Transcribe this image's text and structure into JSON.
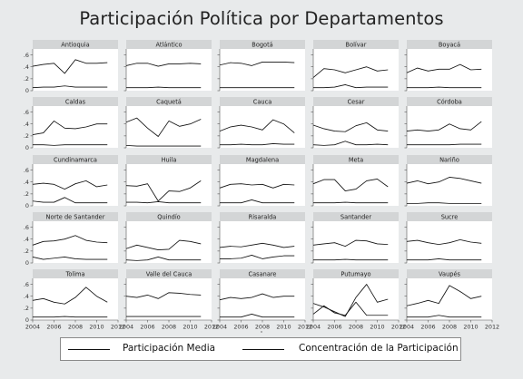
{
  "title": "Participación Política por Departamentos",
  "colors": {
    "background": "#e8eaeb",
    "panel": "#ffffff",
    "strip": "#d3d5d6",
    "line": "#111111"
  },
  "chart_data": {
    "type": "line",
    "facets": true,
    "x": [
      2004,
      2005,
      2006,
      2007,
      2008,
      2009,
      2010,
      2011
    ],
    "xticks": [
      "2004",
      "2006",
      "2008",
      "2010",
      "2012"
    ],
    "xlim": [
      2004,
      2012
    ],
    "ylim": [
      0,
      0.7
    ],
    "yticks": [
      "0",
      ".2",
      ".4",
      ".6"
    ],
    "grid": false,
    "legend_position": "bottom",
    "legend": [
      "Participación Media",
      "Concentración de la Participación"
    ],
    "panels": [
      {
        "name": "Antioquia",
        "series": [
          {
            "values": [
              0.41,
              0.44,
              0.46,
              0.29,
              0.52,
              0.46,
              0.46,
              0.47
            ]
          },
          {
            "values": [
              0.05,
              0.06,
              0.06,
              0.08,
              0.06,
              0.06,
              0.06,
              0.06
            ]
          }
        ]
      },
      {
        "name": "Atlántico",
        "series": [
          {
            "values": [
              0.42,
              0.46,
              0.46,
              0.41,
              0.45,
              0.45,
              0.46,
              0.45
            ]
          },
          {
            "values": [
              0.05,
              0.05,
              0.05,
              0.06,
              0.05,
              0.05,
              0.05,
              0.05
            ]
          }
        ]
      },
      {
        "name": "Bogotá",
        "series": [
          {
            "values": [
              0.43,
              0.47,
              0.46,
              0.42,
              0.48,
              0.48,
              0.48,
              0.47
            ]
          },
          {
            "values": [
              0.05,
              0.05,
              0.05,
              0.05,
              0.05,
              0.05,
              0.05,
              0.05
            ]
          }
        ]
      },
      {
        "name": "Bolívar",
        "series": [
          {
            "values": [
              0.22,
              0.37,
              0.35,
              0.3,
              0.35,
              0.4,
              0.33,
              0.35
            ]
          },
          {
            "values": [
              0.05,
              0.05,
              0.06,
              0.1,
              0.05,
              0.06,
              0.06,
              0.06
            ]
          }
        ]
      },
      {
        "name": "Boyacá",
        "series": [
          {
            "values": [
              0.3,
              0.38,
              0.33,
              0.36,
              0.36,
              0.44,
              0.35,
              0.36
            ]
          },
          {
            "values": [
              0.05,
              0.05,
              0.05,
              0.06,
              0.05,
              0.05,
              0.05,
              0.05
            ]
          }
        ]
      },
      {
        "name": "Caldas",
        "series": [
          {
            "values": [
              0.22,
              0.25,
              0.45,
              0.33,
              0.32,
              0.35,
              0.4,
              0.4
            ]
          },
          {
            "values": [
              0.05,
              0.05,
              0.04,
              0.05,
              0.05,
              0.05,
              0.05,
              0.05
            ]
          }
        ]
      },
      {
        "name": "Caquetá",
        "series": [
          {
            "values": [
              0.43,
              0.5,
              0.33,
              0.19,
              0.45,
              0.36,
              0.4,
              0.48
            ]
          },
          {
            "values": [
              0.04,
              0.03,
              0.03,
              0.03,
              0.03,
              0.03,
              0.03,
              0.03
            ]
          }
        ]
      },
      {
        "name": "Cauca",
        "series": [
          {
            "values": [
              0.28,
              0.35,
              0.38,
              0.35,
              0.3,
              0.47,
              0.4,
              0.25
            ]
          },
          {
            "values": [
              0.05,
              0.05,
              0.06,
              0.05,
              0.05,
              0.07,
              0.06,
              0.06
            ]
          }
        ]
      },
      {
        "name": "Cesar",
        "series": [
          {
            "values": [
              0.38,
              0.32,
              0.28,
              0.27,
              0.37,
              0.42,
              0.3,
              0.28
            ]
          },
          {
            "values": [
              0.05,
              0.04,
              0.05,
              0.11,
              0.05,
              0.05,
              0.06,
              0.05
            ]
          }
        ]
      },
      {
        "name": "Córdoba",
        "series": [
          {
            "values": [
              0.28,
              0.3,
              0.28,
              0.3,
              0.4,
              0.32,
              0.3,
              0.44
            ]
          },
          {
            "values": [
              0.05,
              0.05,
              0.05,
              0.05,
              0.05,
              0.06,
              0.06,
              0.06
            ]
          }
        ]
      },
      {
        "name": "Cundinamarca",
        "series": [
          {
            "values": [
              0.36,
              0.38,
              0.36,
              0.28,
              0.37,
              0.42,
              0.32,
              0.35
            ]
          },
          {
            "values": [
              0.08,
              0.06,
              0.06,
              0.14,
              0.05,
              0.05,
              0.05,
              0.05
            ]
          }
        ]
      },
      {
        "name": "Huila",
        "series": [
          {
            "values": [
              0.34,
              0.33,
              0.37,
              0.08,
              0.25,
              0.24,
              0.3,
              0.42
            ]
          },
          {
            "values": [
              0.06,
              0.06,
              0.05,
              0.07,
              0.05,
              0.05,
              0.05,
              0.05
            ]
          }
        ]
      },
      {
        "name": "Magdalena",
        "series": [
          {
            "values": [
              0.3,
              0.36,
              0.37,
              0.35,
              0.36,
              0.3,
              0.36,
              0.35
            ]
          },
          {
            "values": [
              0.05,
              0.05,
              0.05,
              0.1,
              0.05,
              0.05,
              0.05,
              0.05
            ]
          }
        ]
      },
      {
        "name": "Meta",
        "series": [
          {
            "values": [
              0.37,
              0.44,
              0.44,
              0.25,
              0.28,
              0.42,
              0.45,
              0.32
            ]
          },
          {
            "values": [
              0.05,
              0.05,
              0.05,
              0.06,
              0.05,
              0.05,
              0.05,
              0.05
            ]
          }
        ]
      },
      {
        "name": "Nariño",
        "series": [
          {
            "values": [
              0.38,
              0.42,
              0.37,
              0.4,
              0.48,
              0.46,
              0.42,
              0.38
            ]
          },
          {
            "values": [
              0.04,
              0.04,
              0.05,
              0.05,
              0.04,
              0.04,
              0.04,
              0.04
            ]
          }
        ]
      },
      {
        "name": "Norte de Santander",
        "series": [
          {
            "values": [
              0.3,
              0.36,
              0.37,
              0.4,
              0.46,
              0.38,
              0.35,
              0.34
            ]
          },
          {
            "values": [
              0.1,
              0.06,
              0.08,
              0.1,
              0.07,
              0.06,
              0.06,
              0.06
            ]
          }
        ]
      },
      {
        "name": "Quindío",
        "series": [
          {
            "values": [
              0.24,
              0.3,
              0.26,
              0.22,
              0.23,
              0.38,
              0.36,
              0.32
            ]
          },
          {
            "values": [
              0.05,
              0.04,
              0.05,
              0.1,
              0.05,
              0.05,
              0.05,
              0.05
            ]
          }
        ]
      },
      {
        "name": "Risaralda",
        "series": [
          {
            "values": [
              0.26,
              0.28,
              0.27,
              0.3,
              0.33,
              0.3,
              0.26,
              0.28
            ]
          },
          {
            "values": [
              0.07,
              0.07,
              0.08,
              0.13,
              0.07,
              0.1,
              0.12,
              0.12
            ]
          }
        ]
      },
      {
        "name": "Santander",
        "series": [
          {
            "values": [
              0.3,
              0.32,
              0.34,
              0.28,
              0.38,
              0.37,
              0.32,
              0.31
            ]
          },
          {
            "values": [
              0.05,
              0.05,
              0.05,
              0.06,
              0.05,
              0.05,
              0.05,
              0.05
            ]
          }
        ]
      },
      {
        "name": "Sucre",
        "series": [
          {
            "values": [
              0.36,
              0.38,
              0.34,
              0.31,
              0.34,
              0.39,
              0.35,
              0.33
            ]
          },
          {
            "values": [
              0.05,
              0.05,
              0.05,
              0.07,
              0.05,
              0.05,
              0.05,
              0.05
            ]
          }
        ]
      },
      {
        "name": "Tolima",
        "series": [
          {
            "values": [
              0.33,
              0.36,
              0.3,
              0.27,
              0.38,
              0.55,
              0.4,
              0.3
            ]
          },
          {
            "values": [
              0.05,
              0.05,
              0.05,
              0.06,
              0.05,
              0.05,
              0.05,
              0.05
            ]
          }
        ]
      },
      {
        "name": "Valle del Cauca",
        "series": [
          {
            "values": [
              0.4,
              0.38,
              0.42,
              0.36,
              0.46,
              0.45,
              0.43,
              0.42
            ]
          },
          {
            "values": [
              0.06,
              0.06,
              0.06,
              0.06,
              0.06,
              0.06,
              0.06,
              0.06
            ]
          }
        ]
      },
      {
        "name": "Casanare",
        "series": [
          {
            "values": [
              0.34,
              0.38,
              0.36,
              0.38,
              0.44,
              0.38,
              0.4,
              0.4
            ]
          },
          {
            "values": [
              0.05,
              0.05,
              0.05,
              0.1,
              0.05,
              0.05,
              0.05,
              0.05
            ]
          }
        ]
      },
      {
        "name": "Putumayo",
        "series": [
          {
            "values": [
              0.28,
              0.22,
              0.14,
              0.06,
              0.38,
              0.6,
              0.3,
              0.35
            ]
          },
          {
            "values": [
              0.1,
              0.24,
              0.12,
              0.08,
              0.3,
              0.08,
              0.08,
              0.08
            ]
          }
        ]
      },
      {
        "name": "Vaupés",
        "series": [
          {
            "values": [
              0.24,
              0.28,
              0.33,
              0.28,
              0.58,
              0.48,
              0.36,
              0.4
            ]
          },
          {
            "values": [
              0.05,
              0.05,
              0.05,
              0.08,
              0.05,
              0.05,
              0.05,
              0.05
            ]
          }
        ]
      }
    ]
  }
}
